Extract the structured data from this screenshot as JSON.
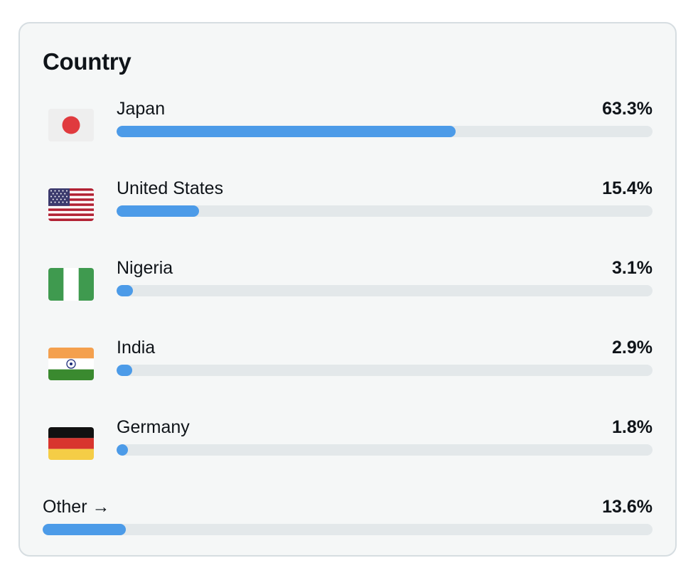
{
  "card": {
    "title": "Country"
  },
  "colors": {
    "bar_fill": "#4c9be8",
    "bar_track": "#e3e8ea",
    "card_bg": "#f5f7f7"
  },
  "countries": [
    {
      "name": "Japan",
      "percent_label": "63.3%",
      "percent": 63.3,
      "flag_icon": "japan-flag-icon"
    },
    {
      "name": "United States",
      "percent_label": "15.4%",
      "percent": 15.4,
      "flag_icon": "united-states-flag-icon"
    },
    {
      "name": "Nigeria",
      "percent_label": "3.1%",
      "percent": 3.1,
      "flag_icon": "nigeria-flag-icon"
    },
    {
      "name": "India",
      "percent_label": "2.9%",
      "percent": 2.9,
      "flag_icon": "india-flag-icon"
    },
    {
      "name": "Germany",
      "percent_label": "1.8%",
      "percent": 1.8,
      "flag_icon": "germany-flag-icon"
    }
  ],
  "other": {
    "label": "Other →",
    "percent_label": "13.6%",
    "percent": 13.6
  }
}
